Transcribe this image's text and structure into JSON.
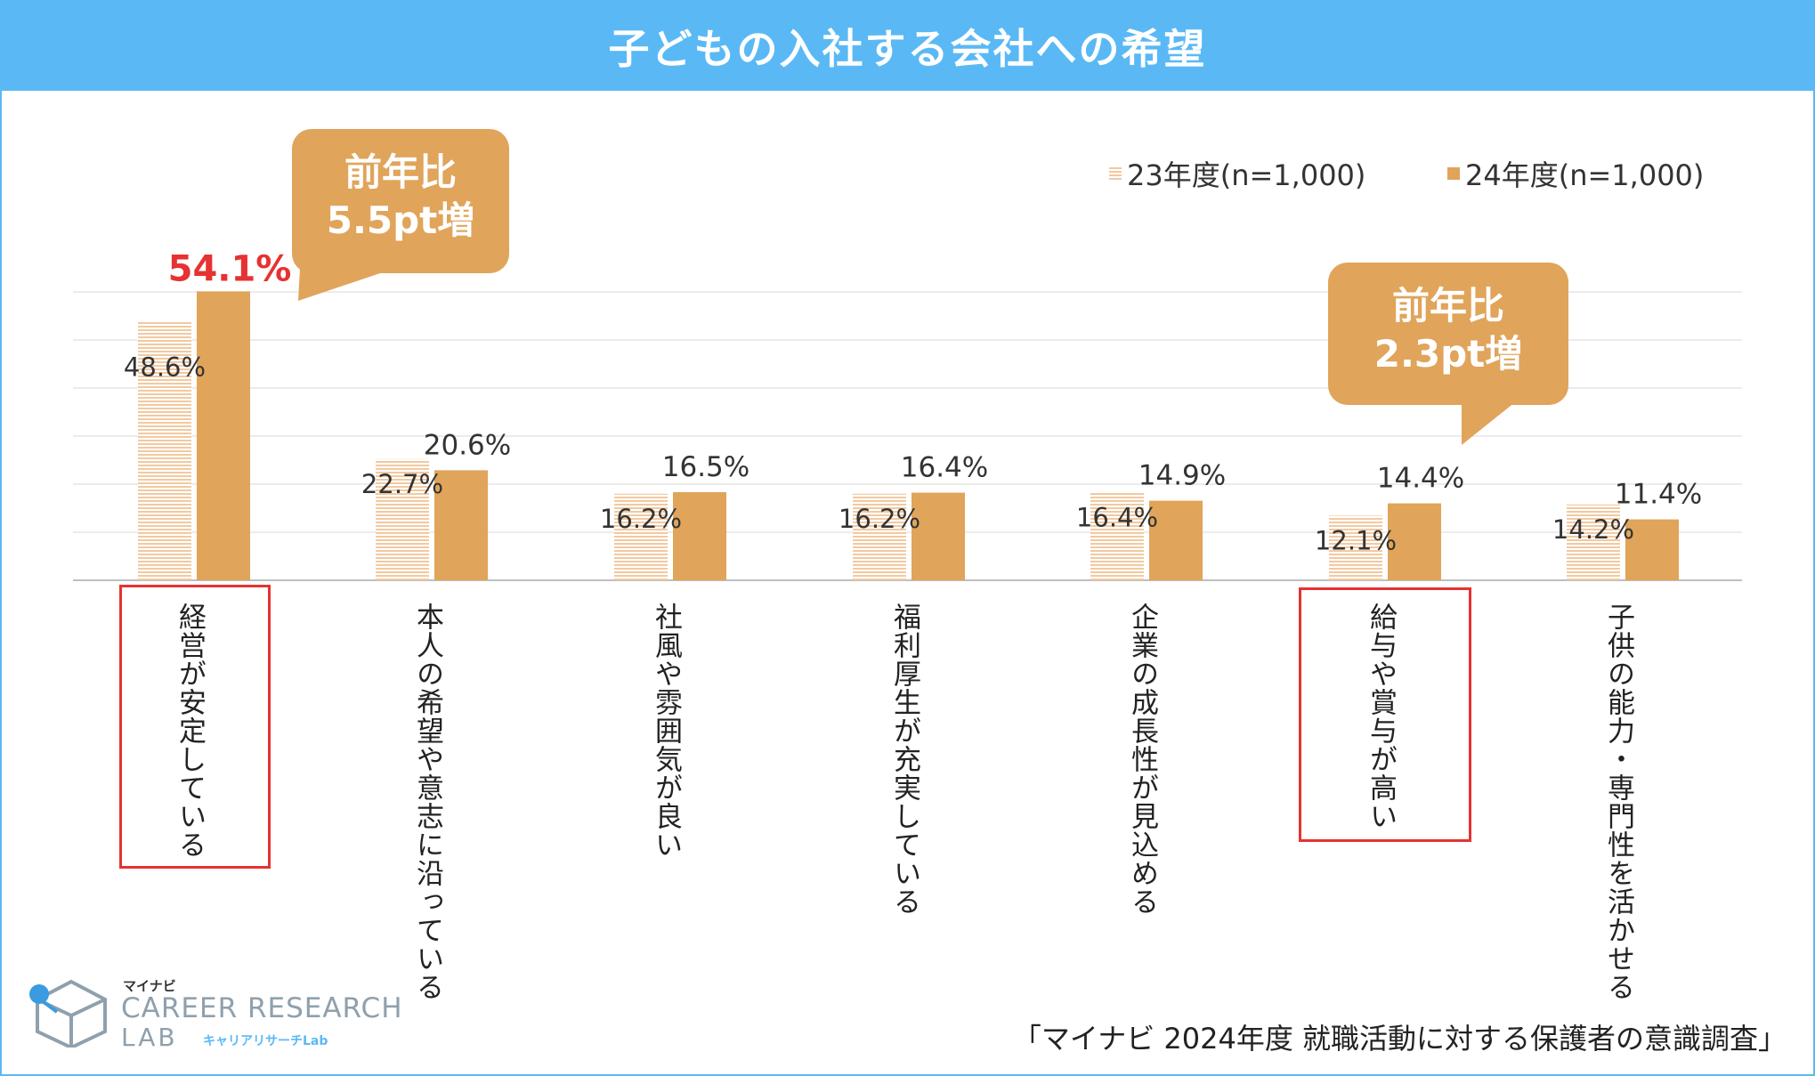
{
  "title": "子どもの入社する会社への希望",
  "legend": {
    "s23": "23年度(n=1,000)",
    "s24": "24年度(n=1,000)"
  },
  "callouts": [
    {
      "line1": "前年比",
      "line2": "5.5pt増"
    },
    {
      "line1": "前年比",
      "line2": "2.3pt増"
    }
  ],
  "source": "「マイナビ 2024年度 就職活動に対する保護者の意識調査」",
  "logo": {
    "brand": "マイナビ",
    "line1": "CAREER RESEARCH",
    "line2": "LAB",
    "line2_sub": "キャリアリサーチLab"
  },
  "colors": {
    "s23": "#f2c9a0",
    "s24": "#e0a45a",
    "highlight": "#e63232",
    "header": "#5ab9f5"
  },
  "chart_data": {
    "type": "bar",
    "categories": [
      "経営が安定している",
      "本人の希望や意志に沿っている",
      "社風や雰囲気が良い",
      "福利厚生が充実している",
      "企業の成長性が見込める",
      "給与や賞与が高い",
      "子供の能力・専門性を活かせる"
    ],
    "series": [
      {
        "name": "23年度(n=1,000)",
        "values": [
          48.6,
          22.7,
          16.2,
          16.2,
          16.4,
          12.1,
          14.2
        ],
        "labels": [
          "48.6%",
          "22.7%",
          "16.2%",
          "16.2%",
          "16.4%",
          "12.1%",
          "14.2%"
        ]
      },
      {
        "name": "24年度(n=1,000)",
        "values": [
          54.1,
          20.6,
          16.5,
          16.4,
          14.9,
          14.4,
          11.4
        ],
        "labels": [
          "54.1%",
          "20.6%",
          "16.5%",
          "16.4%",
          "14.9%",
          "14.4%",
          "11.4%"
        ]
      }
    ],
    "ylim": [
      0,
      60
    ],
    "grid": true,
    "legend": "top-right"
  }
}
